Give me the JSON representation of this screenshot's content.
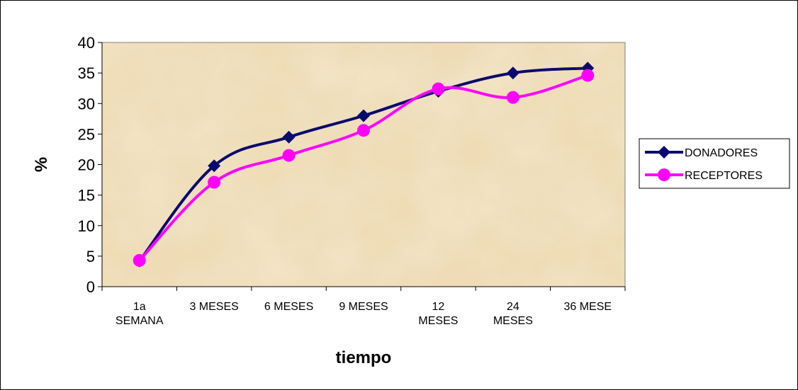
{
  "chart_data": {
    "type": "line",
    "categories": [
      [
        "1a",
        "SEMANA"
      ],
      [
        "3 MESES"
      ],
      [
        "6 MESES"
      ],
      [
        "9 MESES"
      ],
      [
        "12",
        "MESES"
      ],
      [
        "24",
        "MESES"
      ],
      [
        "36 MESE"
      ]
    ],
    "series": [
      {
        "name": "DONADORES",
        "values": [
          4.2,
          19.8,
          24.5,
          28.0,
          32.0,
          35.0,
          35.8
        ],
        "color": "#0a0a6e",
        "marker": "diamond"
      },
      {
        "name": "RECEPTORES",
        "values": [
          4.3,
          17.1,
          21.5,
          25.6,
          32.4,
          31.0,
          34.6
        ],
        "color": "#ff00ff",
        "marker": "circle"
      }
    ],
    "title": "",
    "xlabel": "tiempo",
    "ylabel": "%",
    "ylim": [
      0,
      40
    ],
    "yticks": [
      0,
      5,
      10,
      15,
      20,
      25,
      30,
      35,
      40
    ],
    "grid": false,
    "legend": "right",
    "plot_background": "#f0dcb4"
  }
}
